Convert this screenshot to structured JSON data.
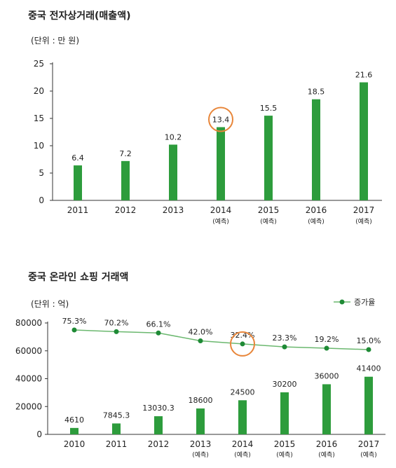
{
  "chart_data": [
    {
      "type": "bar",
      "title": "중국 전자상거래(매출액)",
      "unit_label": "(단위 : 만 원)",
      "categories": [
        "2011",
        "2012",
        "2013",
        "2014",
        "2015",
        "2016",
        "2017"
      ],
      "category_notes": [
        "",
        "",
        "",
        "(예측)",
        "(예측)",
        "(예측)",
        "(예측)"
      ],
      "values": [
        6.4,
        7.2,
        10.2,
        13.4,
        15.5,
        18.5,
        21.6
      ],
      "value_labels": [
        "6.4",
        "7.2",
        "10.2",
        "13.4",
        "15.5",
        "18.5",
        "21.6"
      ],
      "yticks": [
        "0",
        "5",
        "10",
        "15",
        "20",
        "25"
      ],
      "ylim": [
        0,
        25
      ],
      "highlight_category": "2014",
      "bar_color": "#2d9c3c",
      "highlight_color": "#e8863a"
    },
    {
      "type": "bar+line",
      "title": "중국 온라인 쇼핑 거래액",
      "unit_label": "(단위 : 억)",
      "categories": [
        "2010",
        "2011",
        "2012",
        "2013",
        "2014",
        "2015",
        "2016",
        "2017"
      ],
      "category_notes": [
        "",
        "",
        "",
        "(예측)",
        "(예측)",
        "(예측)",
        "(예측)",
        "(예측)"
      ],
      "bars": {
        "values": [
          4610,
          7845.3,
          13030.3,
          18600,
          24500,
          30200,
          36000,
          41400
        ],
        "value_labels": [
          "4610",
          "7845.3",
          "13030.3",
          "18600",
          "24500",
          "30200",
          "36000",
          "41400"
        ]
      },
      "line": {
        "name": "증가율",
        "values": [
          75.3,
          70.2,
          66.1,
          42.0,
          32.4,
          23.3,
          19.2,
          15.0
        ],
        "value_labels": [
          "75.3%",
          "70.2%",
          "66.1%",
          "42.0%",
          "32.4%",
          "23.3%",
          "19.2%",
          "15.0%"
        ]
      },
      "yticks": [
        "0",
        "20000",
        "40000",
        "60000",
        "80000"
      ],
      "ylim": [
        0,
        80000
      ],
      "legend_position": "top-right",
      "highlight_category": "2014",
      "bar_color": "#2d9c3c",
      "line_color": "#6bb86f",
      "marker_color": "#1e8a35",
      "highlight_color": "#e8863a"
    }
  ]
}
